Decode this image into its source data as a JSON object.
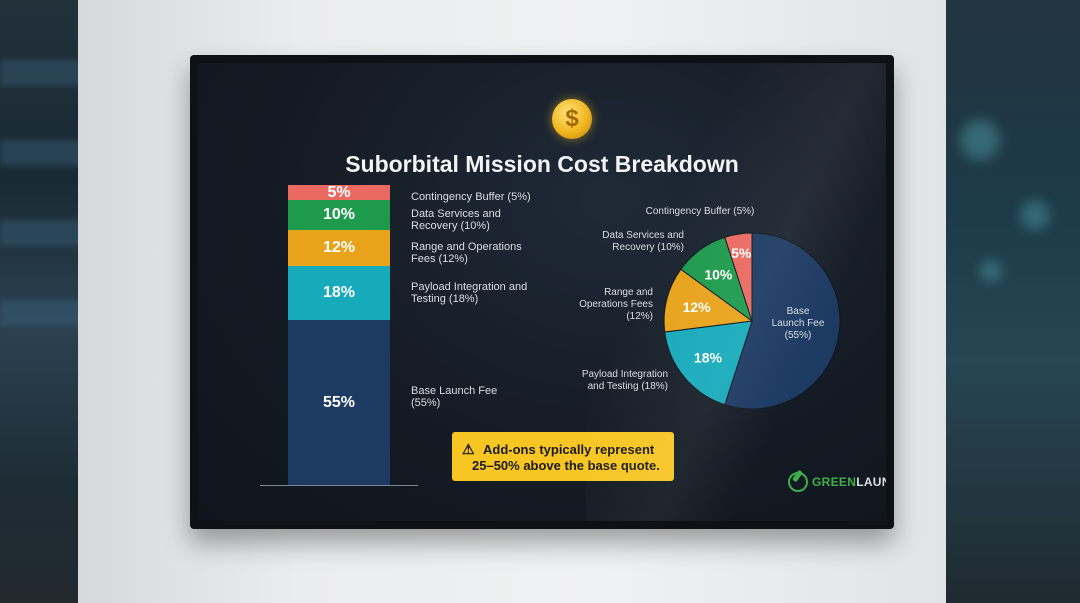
{
  "title": "Suborbital Mission Cost Breakdown",
  "coin_symbol": "$",
  "callout": {
    "icon": "warning-icon",
    "line1": "Add-ons typically represent",
    "line2": "25–50% above the base quote."
  },
  "logo": {
    "green_part": "GREEN",
    "light_part": "LAUNCH"
  },
  "colors": {
    "base": "#1d3a63",
    "payload": "#17aabb",
    "range": "#e8a31b",
    "data": "#1e9a4d",
    "contingency": "#ea6a61",
    "callout": "#f7c623"
  },
  "chart_data": [
    {
      "type": "bar",
      "stacked": true,
      "series": [
        {
          "name": "Base Launch Fee",
          "value": 55,
          "value_label": "55%",
          "legend": [
            "Base Launch Fee",
            "(55%)"
          ]
        },
        {
          "name": "Payload Integration and Testing",
          "value": 18,
          "value_label": "18%",
          "legend": [
            "Payload Integration and",
            "Testing (18%)"
          ]
        },
        {
          "name": "Range and Operations Fees",
          "value": 12,
          "value_label": "12%",
          "legend": [
            "Range and Operations",
            "Fees (12%)"
          ]
        },
        {
          "name": "Data Services and Recovery",
          "value": 10,
          "value_label": "10%",
          "legend": [
            "Data Services and",
            "Recovery (10%)"
          ]
        },
        {
          "name": "Contingency Buffer",
          "value": 5,
          "value_label": "5%",
          "legend": [
            "Contingency Buffer (5%)"
          ]
        }
      ],
      "ylim": [
        0,
        100
      ]
    },
    {
      "type": "pie",
      "slices": [
        {
          "name": "Base Launch Fee",
          "value": 55,
          "value_label": "",
          "outside_label": [
            "Base",
            "Launch Fee",
            "(55%)"
          ]
        },
        {
          "name": "Payload Integration and Testing",
          "value": 18,
          "value_label": "18%",
          "outside_label": [
            "Payload Integration",
            "and Testing (18%)"
          ]
        },
        {
          "name": "Range and Operations Fees",
          "value": 12,
          "value_label": "12%",
          "outside_label": [
            "Range and",
            "Operations Fees",
            "(12%)"
          ]
        },
        {
          "name": "Data Services and Recovery",
          "value": 10,
          "value_label": "10%",
          "outside_label": [
            "Data Services and",
            "Recovery (10%)"
          ]
        },
        {
          "name": "Contingency Buffer",
          "value": 5,
          "value_label": "5%",
          "outside_label": [
            "Contingency Buffer (5%)"
          ]
        }
      ],
      "start": "12 o'clock",
      "direction": "clockwise from Base Launch Fee"
    }
  ]
}
